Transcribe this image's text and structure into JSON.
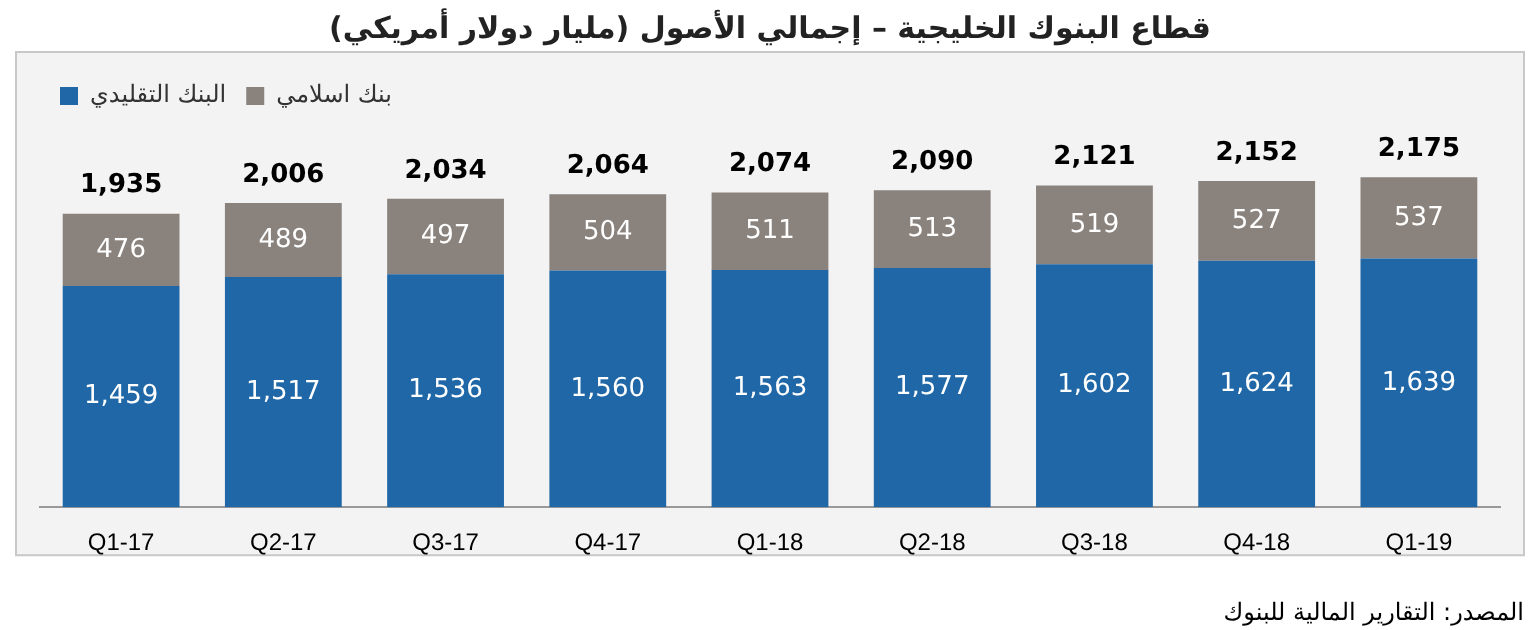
{
  "chart_data": {
    "type": "bar",
    "title": "قطاع البنوك الخليجية – إجمالي الأصول (مليار دولار أمريكي)",
    "categories": [
      "Q1-17",
      "Q2-17",
      "Q3-17",
      "Q4-17",
      "Q1-18",
      "Q2-18",
      "Q3-18",
      "Q4-18",
      "Q1-19"
    ],
    "series": [
      {
        "name": "البنك التقليدي",
        "color": "#1f67a6",
        "values": [
          1459,
          1517,
          1536,
          1560,
          1563,
          1577,
          1602,
          1624,
          1639
        ],
        "value_labels": [
          "1,459",
          "1,517",
          "1,536",
          "1,560",
          "1,563",
          "1,577",
          "1,602",
          "1,624",
          "1,639"
        ]
      },
      {
        "name": "بنك اسلامي",
        "color": "#8a827d",
        "values": [
          476,
          489,
          497,
          504,
          511,
          513,
          519,
          527,
          537
        ],
        "value_labels": [
          "476",
          "489",
          "497",
          "504",
          "511",
          "513",
          "519",
          "527",
          "537"
        ]
      }
    ],
    "stacked": true,
    "totals": [
      "1,935",
      "2,006",
      "2,034",
      "2,064",
      "2,074",
      "2,090",
      "2,121",
      "2,152",
      "2,175"
    ],
    "tick_labels": "x",
    "grid": false,
    "legend": "top left",
    "annotations": [
      "المصدر: التقارير المالية للبنوك"
    ]
  }
}
